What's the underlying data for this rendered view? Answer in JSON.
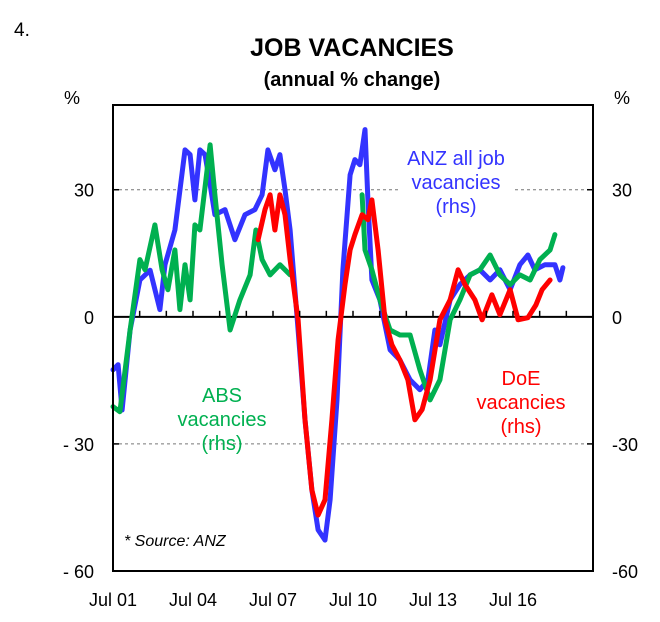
{
  "page_number": "4.",
  "chart_data": {
    "type": "line",
    "title": "JOB VACANCIES",
    "subtitle": "(annual % change)",
    "ylabel_left": "%",
    "ylabel_right": "%",
    "xlim": [
      2001.5,
      2019.5
    ],
    "ylim": [
      -60,
      50
    ],
    "yticks_left": [
      {
        "v": 30,
        "label": "30"
      },
      {
        "v": 0,
        "label": "0"
      },
      {
        "v": -30,
        "label": "- 30"
      },
      {
        "v": -60,
        "label": "- 60"
      }
    ],
    "yticks_right": [
      {
        "v": 30,
        "label": "30"
      },
      {
        "v": 0,
        "label": "0"
      },
      {
        "v": -30,
        "label": "-30"
      },
      {
        "v": -60,
        "label": "-60"
      }
    ],
    "xticks": [
      {
        "v": 2001.5,
        "label": "Jul 01"
      },
      {
        "v": 2004.5,
        "label": "Jul 04"
      },
      {
        "v": 2007.5,
        "label": "Jul 07"
      },
      {
        "v": 2010.5,
        "label": "Jul 10"
      },
      {
        "v": 2013.5,
        "label": "Jul 13"
      },
      {
        "v": 2016.5,
        "label": "Jul 16"
      }
    ],
    "gridlines": [
      30,
      -30
    ],
    "source": "* Source: ANZ",
    "series": [
      {
        "name": "ANZ all job vacancies (rhs)",
        "label_lines": [
          "ANZ all job",
          "vacancies",
          "(rhs)"
        ],
        "color": "#3333ff",
        "points": [
          [
            2001.5,
            -12.5
          ],
          [
            2001.69,
            -11.3
          ],
          [
            2001.84,
            -22
          ],
          [
            2002.14,
            -3.1
          ],
          [
            2002.51,
            8.7
          ],
          [
            2002.89,
            11
          ],
          [
            2003.26,
            1.7
          ],
          [
            2003.45,
            12.3
          ],
          [
            2003.82,
            20.5
          ],
          [
            2004.2,
            39.4
          ],
          [
            2004.39,
            38.3
          ],
          [
            2004.57,
            27.6
          ],
          [
            2004.76,
            39.4
          ],
          [
            2004.95,
            38.3
          ],
          [
            2005.14,
            31.2
          ],
          [
            2005.32,
            24.1
          ],
          [
            2005.7,
            25.3
          ],
          [
            2006.07,
            18.2
          ],
          [
            2006.45,
            24.1
          ],
          [
            2006.82,
            25.3
          ],
          [
            2007.09,
            28.8
          ],
          [
            2007.31,
            39.4
          ],
          [
            2007.57,
            34.7
          ],
          [
            2007.76,
            38.3
          ],
          [
            2007.95,
            30
          ],
          [
            2008.14,
            20.5
          ],
          [
            2008.44,
            -3.1
          ],
          [
            2008.7,
            -24.3
          ],
          [
            2008.96,
            -40.9
          ],
          [
            2009.19,
            -50.3
          ],
          [
            2009.45,
            -52.7
          ],
          [
            2009.64,
            -43.2
          ],
          [
            2009.9,
            -19.6
          ],
          [
            2010.12,
            11.1
          ],
          [
            2010.39,
            33.5
          ],
          [
            2010.57,
            37.1
          ],
          [
            2010.76,
            35.9
          ],
          [
            2010.95,
            44.2
          ],
          [
            2011.06,
            27.6
          ],
          [
            2011.21,
            8.7
          ],
          [
            2011.51,
            4
          ],
          [
            2011.89,
            -7.8
          ],
          [
            2012.26,
            -10.2
          ],
          [
            2012.64,
            -14.9
          ],
          [
            2013.01,
            -17.2
          ],
          [
            2013.31,
            -14.9
          ],
          [
            2013.57,
            -3.1
          ],
          [
            2013.76,
            -6.6
          ],
          [
            2014.14,
            4
          ],
          [
            2014.51,
            7.6
          ],
          [
            2014.89,
            9.9
          ],
          [
            2015.26,
            11.1
          ],
          [
            2015.64,
            8.7
          ],
          [
            2016.01,
            11.1
          ],
          [
            2016.39,
            6.4
          ],
          [
            2016.76,
            12.3
          ],
          [
            2017.06,
            14.6
          ],
          [
            2017.32,
            11.1
          ],
          [
            2017.7,
            12.3
          ],
          [
            2018.07,
            12.3
          ],
          [
            2018.26,
            8.7
          ],
          [
            2018.37,
            11.6
          ]
        ]
      },
      {
        "name": "ABS vacancies (rhs)",
        "label_lines": [
          "ABS",
          "vacancies",
          "(rhs)"
        ],
        "color": "#00b050",
        "points": [
          [
            2001.5,
            -21.2
          ],
          [
            2001.76,
            -22.4
          ],
          [
            2002.14,
            -3.1
          ],
          [
            2002.51,
            13.5
          ],
          [
            2002.7,
            11.1
          ],
          [
            2003.07,
            21.7
          ],
          [
            2003.34,
            11.1
          ],
          [
            2003.56,
            6.4
          ],
          [
            2003.82,
            15.8
          ],
          [
            2004.01,
            1.7
          ],
          [
            2004.2,
            12.3
          ],
          [
            2004.39,
            4
          ],
          [
            2004.57,
            21.7
          ],
          [
            2004.76,
            20.5
          ],
          [
            2005.14,
            40.6
          ],
          [
            2005.32,
            28.8
          ],
          [
            2005.59,
            12.3
          ],
          [
            2005.89,
            -3.1
          ],
          [
            2006.26,
            4
          ],
          [
            2006.64,
            9.9
          ],
          [
            2006.86,
            20.5
          ],
          [
            2007.09,
            13.5
          ],
          [
            2007.39,
            9.9
          ],
          [
            2007.76,
            12.3
          ],
          [
            2008.14,
            9.9
          ],
          null,
          [
            2010.84,
            28.8
          ],
          [
            2010.95,
            15.8
          ],
          [
            2011.21,
            11.1
          ],
          [
            2011.51,
            4
          ],
          [
            2011.89,
            -3.1
          ],
          [
            2012.26,
            -4.3
          ],
          [
            2012.64,
            -4.3
          ],
          [
            2013.01,
            -12.5
          ],
          [
            2013.39,
            -19.6
          ],
          [
            2013.76,
            -14.9
          ],
          [
            2014.14,
            -0.7
          ],
          [
            2014.51,
            4
          ],
          [
            2014.89,
            9.9
          ],
          [
            2015.26,
            11.1
          ],
          [
            2015.64,
            14.6
          ],
          [
            2016.01,
            9.9
          ],
          [
            2016.39,
            7.6
          ],
          [
            2016.76,
            9.9
          ],
          [
            2017.14,
            8.7
          ],
          [
            2017.51,
            13.5
          ],
          [
            2017.89,
            15.8
          ],
          [
            2018.07,
            19.4
          ]
        ]
      },
      {
        "name": "DoE vacancies (rhs)",
        "label_lines": [
          "DoE",
          "vacancies",
          "(rhs)"
        ],
        "color": "#ff0000",
        "points": [
          [
            2006.94,
            18.2
          ],
          [
            2007.2,
            25.3
          ],
          [
            2007.39,
            28.8
          ],
          [
            2007.57,
            20.5
          ],
          [
            2007.76,
            28.8
          ],
          [
            2007.95,
            24.1
          ],
          [
            2008.14,
            13.5
          ],
          [
            2008.44,
            -0.7
          ],
          [
            2008.7,
            -24.3
          ],
          [
            2008.96,
            -40.9
          ],
          [
            2009.19,
            -46.8
          ],
          [
            2009.45,
            -43.2
          ],
          [
            2009.71,
            -24.3
          ],
          [
            2009.94,
            -5.4
          ],
          [
            2010.2,
            7.6
          ],
          [
            2010.39,
            15.8
          ],
          [
            2010.57,
            19.4
          ],
          [
            2010.84,
            24.1
          ],
          [
            2011.06,
            22.9
          ],
          [
            2011.21,
            27.6
          ],
          [
            2011.44,
            15.8
          ],
          [
            2011.7,
            -0.7
          ],
          [
            2011.96,
            -6.6
          ],
          [
            2012.26,
            -10.2
          ],
          [
            2012.56,
            -14.9
          ],
          [
            2012.82,
            -24.3
          ],
          [
            2013.09,
            -21.9
          ],
          [
            2013.39,
            -14.9
          ],
          [
            2013.76,
            -0.7
          ],
          [
            2014.14,
            4
          ],
          [
            2014.44,
            11.1
          ],
          [
            2014.7,
            7.6
          ],
          [
            2015.07,
            4
          ],
          [
            2015.34,
            -0.7
          ],
          [
            2015.71,
            5.2
          ],
          [
            2016.01,
            0.5
          ],
          [
            2016.39,
            6.4
          ],
          [
            2016.69,
            -0.7
          ],
          [
            2017.06,
            -0.2
          ],
          [
            2017.36,
            2.8
          ],
          [
            2017.59,
            6.4
          ],
          [
            2017.89,
            8.7
          ]
        ]
      }
    ]
  }
}
